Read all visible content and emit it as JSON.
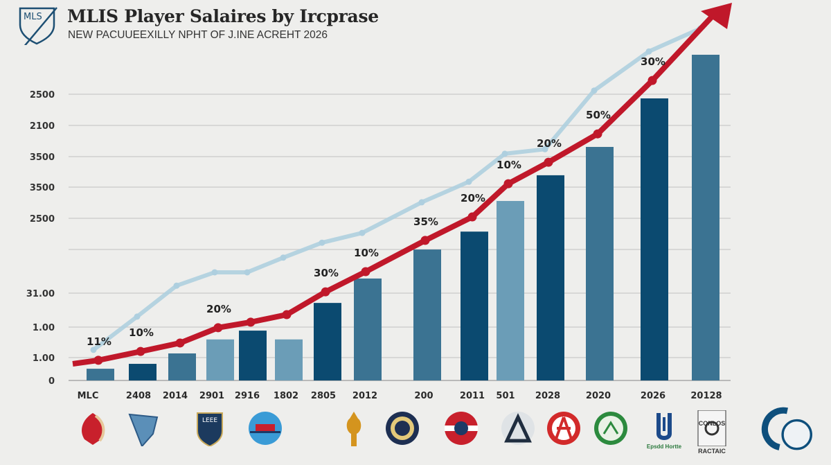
{
  "header": {
    "logo_text": "MLS",
    "title": "MLIS Player  Salaires by Ircprase",
    "subtitle": "NEW PACUUEEXILLY NPHT OF J.INE ACREHT 2026"
  },
  "colors": {
    "bar_dark": "#0b4a70",
    "bar_mid": "#3b7392",
    "bar_light": "#6b9db7",
    "trend_red": "#c0182a",
    "secondary_line": "#aecfdf",
    "grid": "#cfcfcf",
    "background": "#eeeeec"
  },
  "chart_data": {
    "type": "bar",
    "title": "MLIS Player  Salaires by Ircprase",
    "subtitle": "NEW PACUUEEXILLY NPHT OF J.INE ACREHT 2026",
    "xlabel": "",
    "ylabel": "",
    "y_tick_labels": [
      "0",
      "1.00",
      "1.00",
      "31.00",
      "",
      "2500",
      "3500",
      "3500",
      "2100",
      "2500"
    ],
    "grid": true,
    "legend": "none",
    "categories": [
      "MLC",
      "2408",
      "2014",
      "2901",
      "2916",
      "1802",
      "2805",
      "2012",
      "200",
      "2011",
      "501",
      "2028",
      "2020",
      "2026",
      "20128"
    ],
    "ylim": [
      0,
      115
    ],
    "series": [
      {
        "type": "bar",
        "values": [
          3.6,
          5.1,
          8.3,
          12.6,
          15.3,
          12.6,
          23.8,
          31.3,
          40.2,
          45.7,
          55.1,
          63.0,
          71.7,
          86.6,
          100
        ],
        "shades": [
          "mid",
          "dark",
          "mid",
          "light",
          "dark",
          "light",
          "dark",
          "mid",
          "mid",
          "dark",
          "light",
          "dark",
          "mid",
          "dark",
          "mid"
        ]
      },
      {
        "type": "line",
        "color": "#c0182a",
        "arrow": true,
        "values": [
          6.2,
          8.9,
          11.5,
          16.2,
          17.9,
          20.2,
          27.2,
          33.4,
          43.0,
          50.2,
          60.4,
          67.0,
          75.7,
          92.1,
          null
        ],
        "point_labels": [
          "11%",
          "10%",
          "",
          "20%",
          "",
          "",
          "30%",
          "10%",
          "35%",
          "20%",
          "10%",
          "20%",
          "50%",
          "30%",
          ""
        ]
      },
      {
        "type": "line",
        "color": "#aecfdf",
        "values": [
          9.4,
          19.6,
          29.1,
          33.2,
          33.2,
          37.7,
          42.3,
          45.3,
          54.7,
          61.0,
          69.6,
          71.0,
          89.0,
          101,
          108
        ]
      }
    ]
  },
  "team_logos": [
    {
      "name": "red-leaf-crest",
      "color": "#c8202c"
    },
    {
      "name": "blue-shield-crest",
      "color": "#5b8fb8"
    },
    {
      "name": "navy-shield-crest",
      "color": "#1c3a5e",
      "text": "LEEE"
    },
    {
      "name": "blue-disc-crest",
      "color": "#3a9bd6"
    },
    {
      "name": "spartan-helmet-crest",
      "color": "#d4941e"
    },
    {
      "name": "gold-ring-crest",
      "color": "#1d2f52"
    },
    {
      "name": "red-circle-crest",
      "color": "#c8202c"
    },
    {
      "name": "triangle-crest",
      "color": "#1f2d3f"
    },
    {
      "name": "red-roundel-crest",
      "color": "#d22a2a"
    },
    {
      "name": "green-roundel-crest",
      "color": "#2c8a3e"
    },
    {
      "name": "navy-u-crest",
      "color": "#1c4a8a",
      "text": "Epsdd Hortte"
    },
    {
      "name": "box-ball-crest",
      "color": "#333",
      "text": "CONLOS RACTAIC"
    },
    {
      "name": "large-q-ball-crest",
      "color": "#0e4f7c"
    }
  ]
}
